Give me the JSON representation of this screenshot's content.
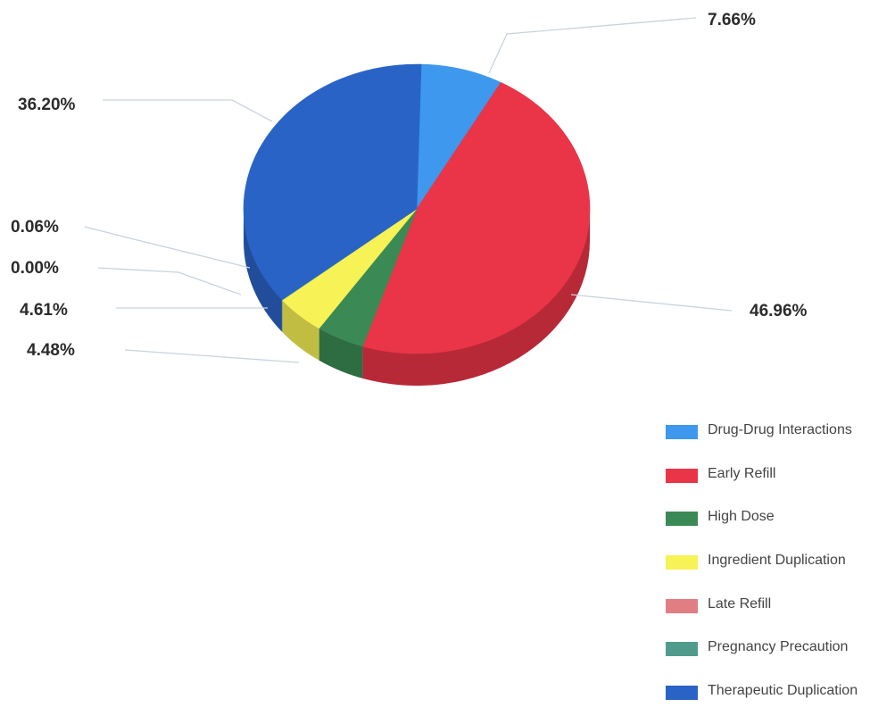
{
  "chart_data": {
    "type": "pie",
    "three_d": true,
    "legend_position": "bottom-right",
    "slices": [
      {
        "label": "Drug-Drug Interactions",
        "value": 7.66,
        "display": "7.66%",
        "color": "#3d98ee"
      },
      {
        "label": "Early Refill",
        "value": 46.96,
        "display": "46.96%",
        "color": "#ea3447"
      },
      {
        "label": "High Dose",
        "value": 4.48,
        "display": "4.48%",
        "color": "#3b8a55"
      },
      {
        "label": "Ingredient Duplication",
        "value": 4.61,
        "display": "4.61%",
        "color": "#f7f256"
      },
      {
        "label": "Late Refill",
        "value": 0.0,
        "display": "0.00%",
        "color": "#e07e84"
      },
      {
        "label": "Pregnancy Precaution",
        "value": 0.06,
        "display": "0.06%",
        "color": "#4f9c8c"
      },
      {
        "label": "Therapeutic Duplication",
        "value": 36.2,
        "display": "36.20%",
        "color": "#2a63c6"
      }
    ]
  }
}
